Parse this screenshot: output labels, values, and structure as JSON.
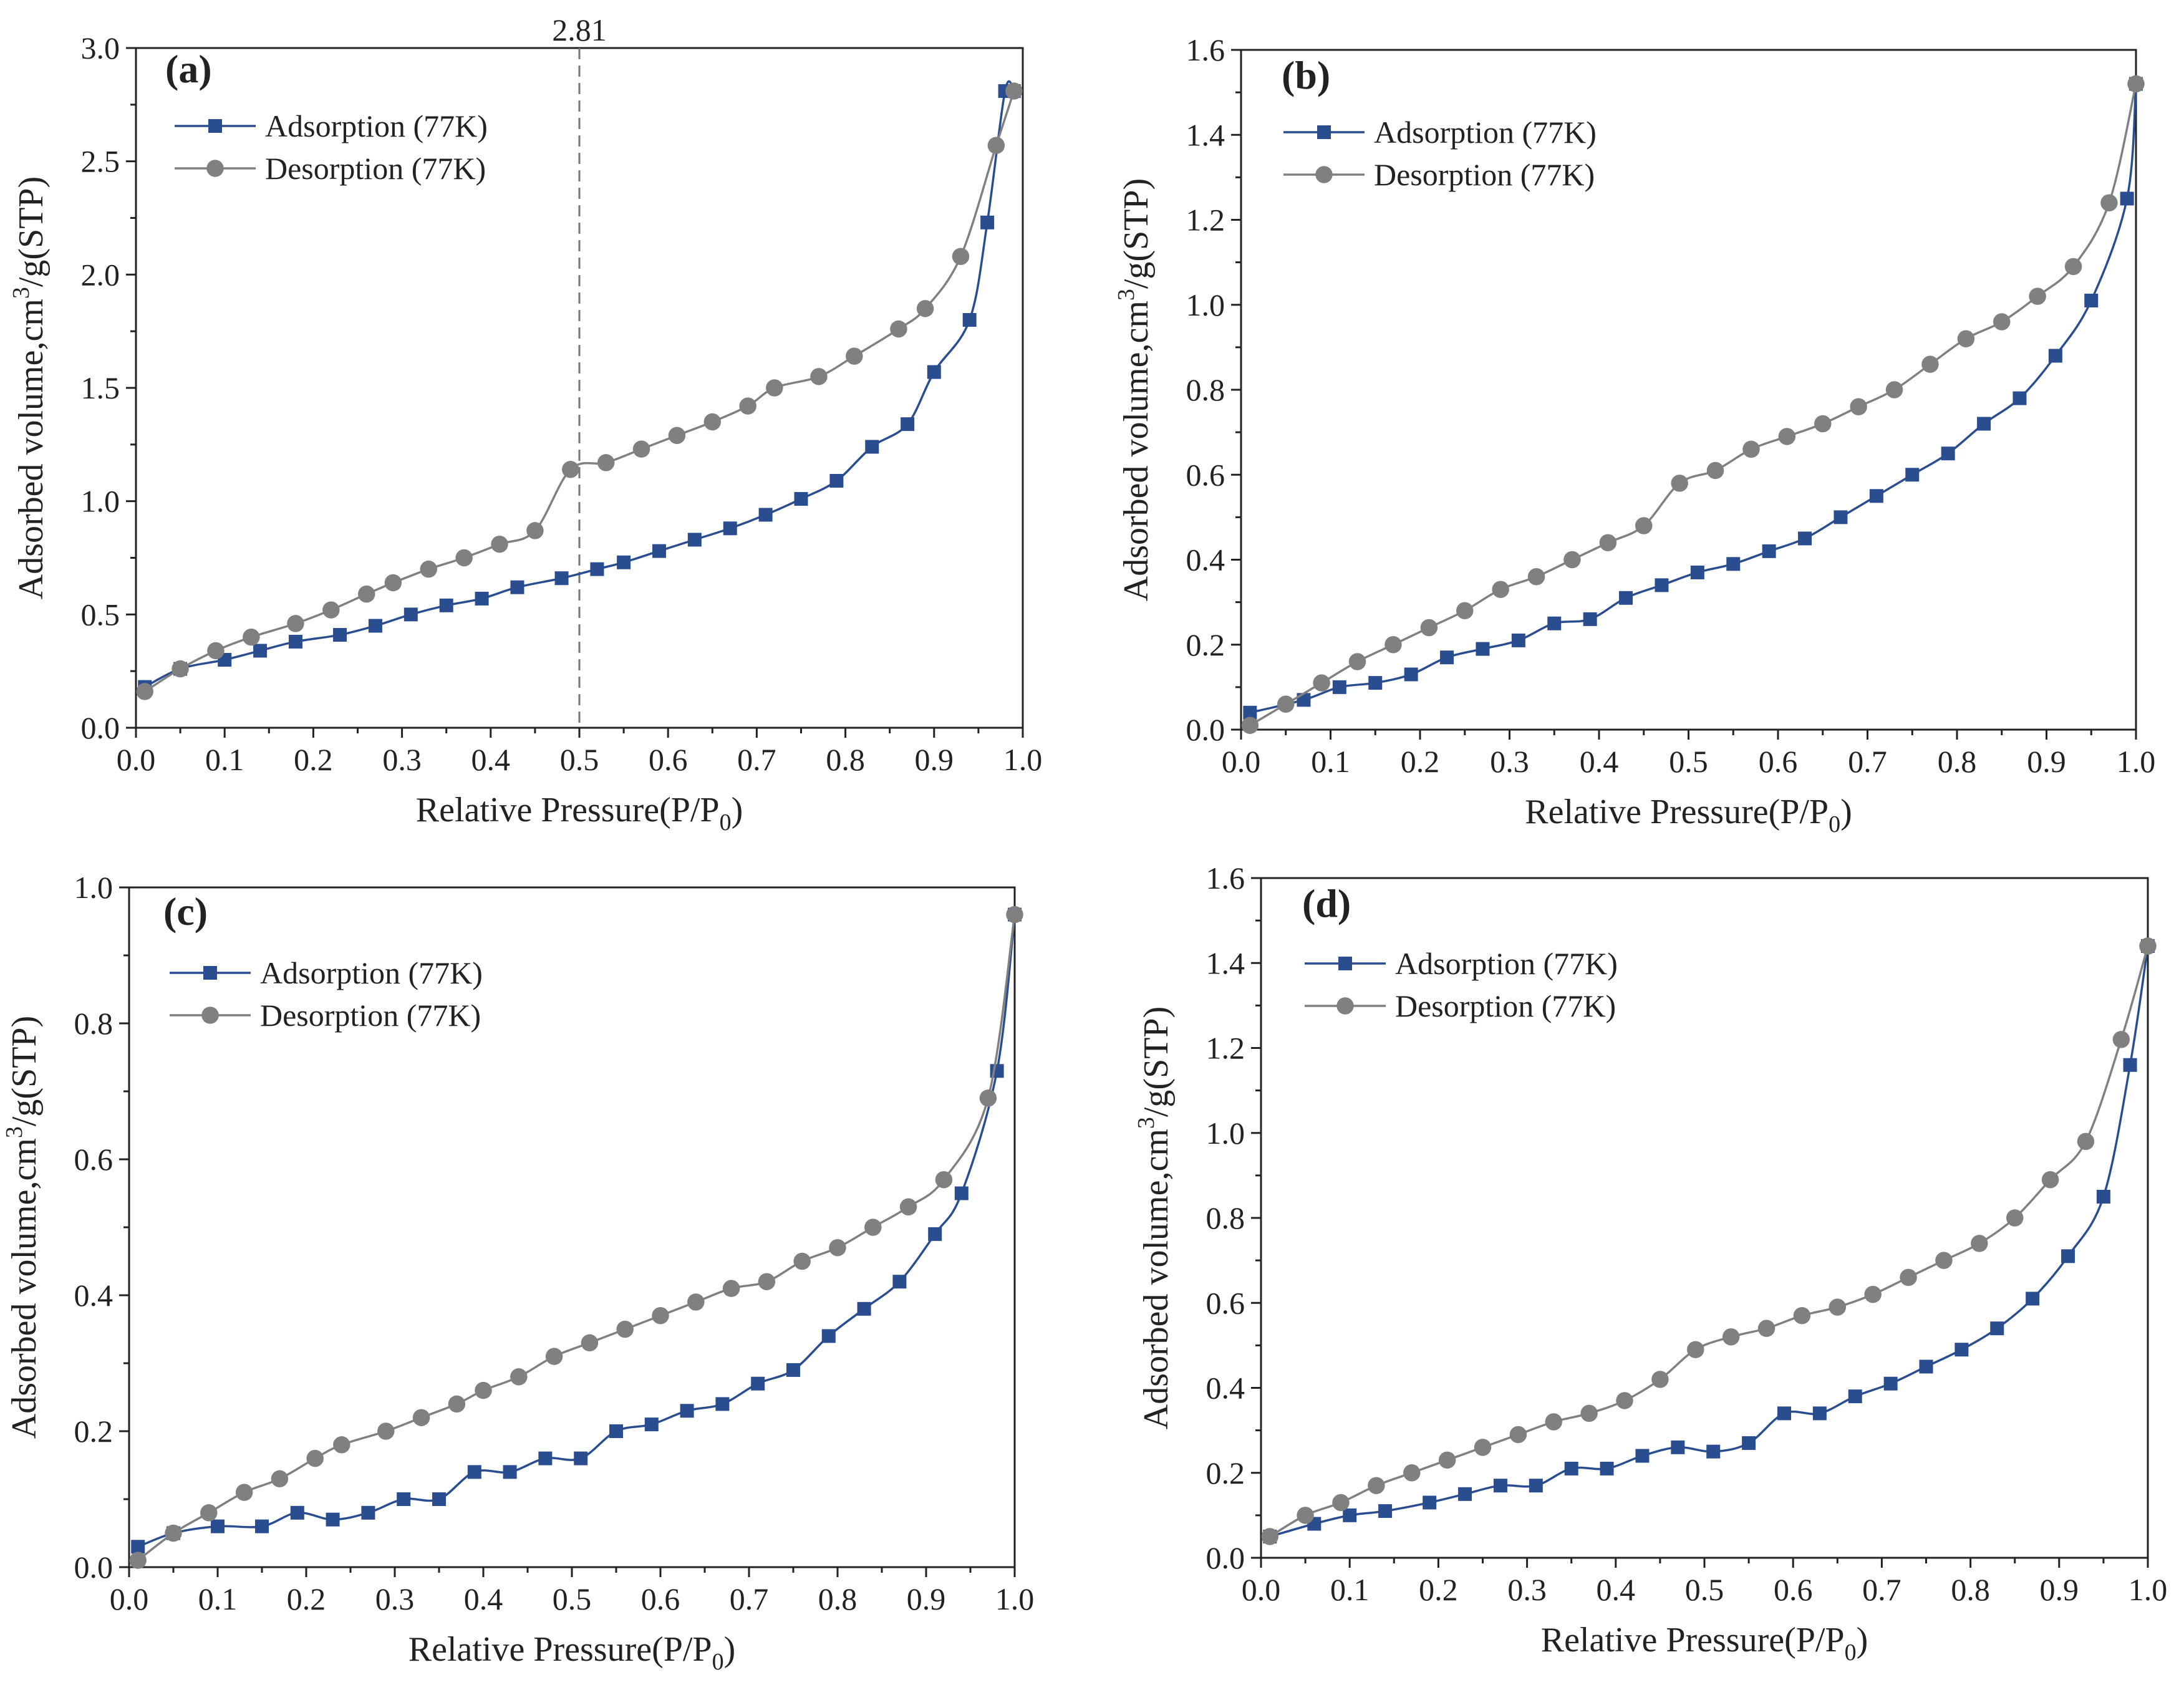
{
  "chart_data": [
    {
      "type": "line",
      "panel_label": "(a)",
      "xlabel": "Relative Pressure(P/P0)",
      "ylabel": "Adsorbed volume,cm3/g(STP)",
      "xlim": [
        0.0,
        1.0
      ],
      "ylim": [
        0.0,
        3.0
      ],
      "xticks": [
        "0.0",
        "0.1",
        "0.2",
        "0.3",
        "0.4",
        "0.5",
        "0.6",
        "0.7",
        "0.8",
        "0.9",
        "1.0"
      ],
      "yticks": [
        "0.0",
        "0.5",
        "1.0",
        "1.5",
        "2.0",
        "2.5",
        "3.0"
      ],
      "annotation": {
        "x": 0.5,
        "label": "2.81"
      },
      "series": [
        {
          "name": "Adsorption (77K)",
          "marker": "square",
          "color": "#2a4d8f",
          "x": [
            0.01,
            0.05,
            0.1,
            0.14,
            0.18,
            0.23,
            0.27,
            0.31,
            0.35,
            0.39,
            0.43,
            0.48,
            0.52,
            0.55,
            0.59,
            0.63,
            0.67,
            0.71,
            0.75,
            0.79,
            0.83,
            0.87,
            0.9,
            0.94,
            0.96,
            0.98,
            0.99
          ],
          "y": [
            0.18,
            0.26,
            0.3,
            0.34,
            0.38,
            0.41,
            0.45,
            0.5,
            0.54,
            0.57,
            0.62,
            0.66,
            0.7,
            0.73,
            0.78,
            0.83,
            0.88,
            0.94,
            1.01,
            1.09,
            1.24,
            1.34,
            1.57,
            1.8,
            2.23,
            2.81,
            2.81
          ]
        },
        {
          "name": "Desorption (77K)",
          "marker": "circle",
          "color": "#808080",
          "x": [
            0.01,
            0.05,
            0.09,
            0.13,
            0.18,
            0.22,
            0.26,
            0.29,
            0.33,
            0.37,
            0.41,
            0.45,
            0.49,
            0.53,
            0.57,
            0.61,
            0.65,
            0.69,
            0.72,
            0.77,
            0.81,
            0.86,
            0.89,
            0.93,
            0.97,
            0.99
          ],
          "y": [
            0.16,
            0.26,
            0.34,
            0.4,
            0.46,
            0.52,
            0.59,
            0.64,
            0.7,
            0.75,
            0.81,
            0.87,
            1.14,
            1.17,
            1.23,
            1.29,
            1.35,
            1.42,
            1.5,
            1.55,
            1.64,
            1.76,
            1.85,
            2.08,
            2.57,
            2.81
          ]
        }
      ]
    },
    {
      "type": "line",
      "panel_label": "(b)",
      "xlabel": "Relative Pressure(P/P0)",
      "ylabel": "Adsorbed volume,cm3/g(STP)",
      "xlim": [
        0.0,
        1.0
      ],
      "ylim": [
        0.0,
        1.6
      ],
      "xticks": [
        "0.0",
        "0.1",
        "0.2",
        "0.3",
        "0.4",
        "0.5",
        "0.6",
        "0.7",
        "0.8",
        "0.9",
        "1.0"
      ],
      "yticks": [
        "0.0",
        "0.2",
        "0.4",
        "0.6",
        "0.8",
        "1.0",
        "1.2",
        "1.4",
        "1.6"
      ],
      "series": [
        {
          "name": "Adsorption (77K)",
          "marker": "square",
          "color": "#2a4d8f",
          "x": [
            0.01,
            0.07,
            0.11,
            0.15,
            0.19,
            0.23,
            0.27,
            0.31,
            0.35,
            0.39,
            0.43,
            0.47,
            0.51,
            0.55,
            0.59,
            0.63,
            0.67,
            0.71,
            0.75,
            0.79,
            0.83,
            0.87,
            0.91,
            0.95,
            0.99,
            1.0
          ],
          "y": [
            0.04,
            0.07,
            0.1,
            0.11,
            0.13,
            0.17,
            0.19,
            0.21,
            0.25,
            0.26,
            0.31,
            0.34,
            0.37,
            0.39,
            0.42,
            0.45,
            0.5,
            0.55,
            0.6,
            0.65,
            0.72,
            0.78,
            0.88,
            1.01,
            1.25,
            1.52
          ]
        },
        {
          "name": "Desorption (77K)",
          "marker": "circle",
          "color": "#808080",
          "x": [
            0.01,
            0.05,
            0.09,
            0.13,
            0.17,
            0.21,
            0.25,
            0.29,
            0.33,
            0.37,
            0.41,
            0.45,
            0.49,
            0.53,
            0.57,
            0.61,
            0.65,
            0.69,
            0.73,
            0.77,
            0.81,
            0.85,
            0.89,
            0.93,
            0.97,
            1.0
          ],
          "y": [
            0.01,
            0.06,
            0.11,
            0.16,
            0.2,
            0.24,
            0.28,
            0.33,
            0.36,
            0.4,
            0.44,
            0.48,
            0.58,
            0.61,
            0.66,
            0.69,
            0.72,
            0.76,
            0.8,
            0.86,
            0.92,
            0.96,
            1.02,
            1.09,
            1.24,
            1.52
          ]
        }
      ]
    },
    {
      "type": "line",
      "panel_label": "(c)",
      "xlabel": "Relative Pressure(P/P0)",
      "ylabel": "Adsorbed volume,cm3/g(STP)",
      "xlim": [
        0.0,
        1.0
      ],
      "ylim": [
        0.0,
        1.0
      ],
      "xticks": [
        "0.0",
        "0.1",
        "0.2",
        "0.3",
        "0.4",
        "0.5",
        "0.6",
        "0.7",
        "0.8",
        "0.9",
        "1.0"
      ],
      "yticks": [
        "0.0",
        "0.2",
        "0.4",
        "0.6",
        "0.8",
        "1.0"
      ],
      "series": [
        {
          "name": "Adsorption (77K)",
          "marker": "square",
          "color": "#2a4d8f",
          "x": [
            0.01,
            0.05,
            0.1,
            0.15,
            0.19,
            0.23,
            0.27,
            0.31,
            0.35,
            0.39,
            0.43,
            0.47,
            0.51,
            0.55,
            0.59,
            0.63,
            0.67,
            0.71,
            0.75,
            0.79,
            0.83,
            0.87,
            0.91,
            0.94,
            0.98,
            1.0
          ],
          "y": [
            0.03,
            0.05,
            0.06,
            0.06,
            0.08,
            0.07,
            0.08,
            0.1,
            0.1,
            0.14,
            0.14,
            0.16,
            0.16,
            0.2,
            0.21,
            0.23,
            0.24,
            0.27,
            0.29,
            0.34,
            0.38,
            0.42,
            0.49,
            0.55,
            0.73,
            0.96
          ]
        },
        {
          "name": "Desorption (77K)",
          "marker": "circle",
          "color": "#808080",
          "x": [
            0.01,
            0.05,
            0.09,
            0.13,
            0.17,
            0.21,
            0.24,
            0.29,
            0.33,
            0.37,
            0.4,
            0.44,
            0.48,
            0.52,
            0.56,
            0.6,
            0.64,
            0.68,
            0.72,
            0.76,
            0.8,
            0.84,
            0.88,
            0.92,
            0.97,
            1.0
          ],
          "y": [
            0.01,
            0.05,
            0.08,
            0.11,
            0.13,
            0.16,
            0.18,
            0.2,
            0.22,
            0.24,
            0.26,
            0.28,
            0.31,
            0.33,
            0.35,
            0.37,
            0.39,
            0.41,
            0.42,
            0.45,
            0.47,
            0.5,
            0.53,
            0.57,
            0.69,
            0.96
          ]
        }
      ]
    },
    {
      "type": "line",
      "panel_label": "(d)",
      "xlabel": "Relative Pressure(P/P0)",
      "ylabel": "Adsorbed volume,cm3/g(STP)",
      "xlim": [
        0.0,
        1.0
      ],
      "ylim": [
        0.0,
        1.6
      ],
      "xticks": [
        "0.0",
        "0.1",
        "0.2",
        "0.3",
        "0.4",
        "0.5",
        "0.6",
        "0.7",
        "0.8",
        "0.9",
        "1.0"
      ],
      "yticks": [
        "0.0",
        "0.2",
        "0.4",
        "0.6",
        "0.8",
        "1.0",
        "1.2",
        "1.4",
        "1.6"
      ],
      "series": [
        {
          "name": "Adsorption (77K)",
          "marker": "square",
          "color": "#2a4d8f",
          "x": [
            0.01,
            0.06,
            0.1,
            0.14,
            0.19,
            0.23,
            0.27,
            0.31,
            0.35,
            0.39,
            0.43,
            0.47,
            0.51,
            0.55,
            0.59,
            0.63,
            0.67,
            0.71,
            0.75,
            0.79,
            0.83,
            0.87,
            0.91,
            0.95,
            0.98,
            1.0
          ],
          "y": [
            0.05,
            0.08,
            0.1,
            0.11,
            0.13,
            0.15,
            0.17,
            0.17,
            0.21,
            0.21,
            0.24,
            0.26,
            0.25,
            0.27,
            0.34,
            0.34,
            0.38,
            0.41,
            0.45,
            0.49,
            0.54,
            0.61,
            0.71,
            0.85,
            1.16,
            1.44
          ]
        },
        {
          "name": "Desorption (77K)",
          "marker": "circle",
          "color": "#808080",
          "x": [
            0.01,
            0.05,
            0.09,
            0.13,
            0.17,
            0.21,
            0.25,
            0.29,
            0.33,
            0.37,
            0.41,
            0.45,
            0.49,
            0.53,
            0.57,
            0.61,
            0.65,
            0.69,
            0.73,
            0.77,
            0.81,
            0.85,
            0.89,
            0.93,
            0.97,
            1.0
          ],
          "y": [
            0.05,
            0.1,
            0.13,
            0.17,
            0.2,
            0.23,
            0.26,
            0.29,
            0.32,
            0.34,
            0.37,
            0.42,
            0.49,
            0.52,
            0.54,
            0.57,
            0.59,
            0.62,
            0.66,
            0.7,
            0.74,
            0.8,
            0.89,
            0.98,
            1.22,
            1.44
          ]
        }
      ]
    }
  ]
}
